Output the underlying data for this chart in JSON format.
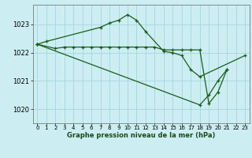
{
  "bg_color": "#cceef2",
  "grid_color": "#aad8e0",
  "line_color": "#1a5c1a",
  "title": "Graphe pression niveau de la mer (hPa)",
  "xlim": [
    -0.5,
    23.5
  ],
  "ylim": [
    1019.5,
    1023.7
  ],
  "yticks": [
    1020,
    1021,
    1022,
    1023
  ],
  "xticks": [
    0,
    1,
    2,
    3,
    4,
    5,
    6,
    7,
    8,
    9,
    10,
    11,
    12,
    13,
    14,
    15,
    16,
    17,
    18,
    19,
    20,
    21,
    22,
    23
  ],
  "line1_x": [
    0,
    1,
    7,
    8,
    9,
    10,
    11,
    12,
    14,
    15,
    16,
    17,
    18,
    23
  ],
  "line1_y": [
    1022.3,
    1022.4,
    1022.9,
    1023.05,
    1023.15,
    1023.35,
    1023.15,
    1022.75,
    1022.05,
    1022.0,
    1021.9,
    1021.4,
    1021.15,
    1021.9
  ],
  "line2_x": [
    0,
    2,
    3,
    4,
    5,
    6,
    7,
    8,
    9,
    10,
    11,
    12,
    13,
    14,
    15,
    16,
    17,
    18,
    19,
    20,
    21
  ],
  "line2_y": [
    1022.3,
    1022.15,
    1022.2,
    1022.2,
    1022.2,
    1022.2,
    1022.2,
    1022.2,
    1022.2,
    1022.2,
    1022.2,
    1022.2,
    1022.2,
    1022.1,
    1022.1,
    1022.1,
    1022.1,
    1022.1,
    1020.2,
    1020.6,
    1021.4
  ],
  "line3_x": [
    0,
    18,
    19,
    20,
    21
  ],
  "line3_y": [
    1022.3,
    1020.15,
    1020.5,
    1021.0,
    1021.4
  ]
}
